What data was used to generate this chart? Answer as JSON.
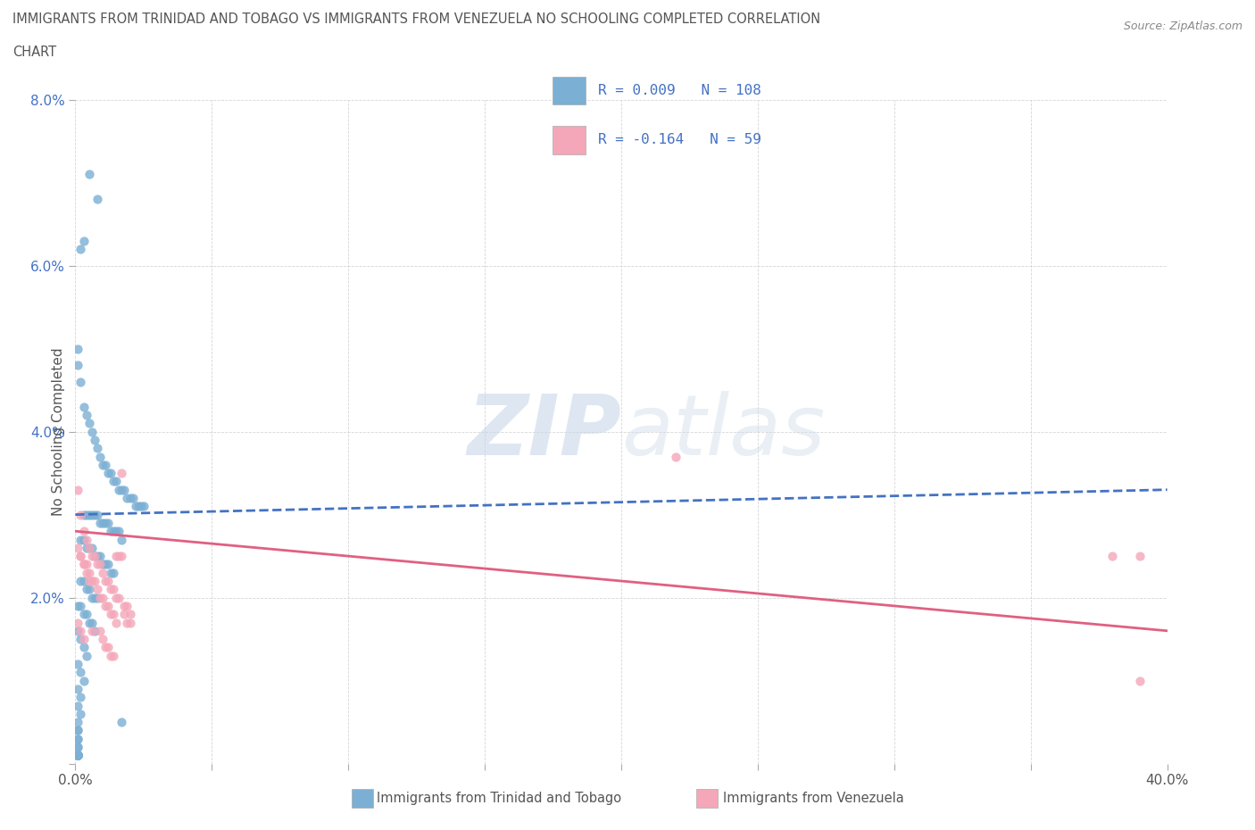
{
  "title_line1": "IMMIGRANTS FROM TRINIDAD AND TOBAGO VS IMMIGRANTS FROM VENEZUELA NO SCHOOLING COMPLETED CORRELATION",
  "title_line2": "CHART",
  "source": "Source: ZipAtlas.com",
  "ylabel": "No Schooling Completed",
  "xlim": [
    0.0,
    0.4
  ],
  "ylim": [
    0.0,
    0.08
  ],
  "xticks": [
    0.0,
    0.05,
    0.1,
    0.15,
    0.2,
    0.25,
    0.3,
    0.35,
    0.4
  ],
  "yticks": [
    0.0,
    0.02,
    0.04,
    0.06,
    0.08
  ],
  "color_tt": "#7bafd4",
  "color_tt_line": "#4472c4",
  "color_vz": "#f4a7b9",
  "color_vz_line": "#e06080",
  "color_legend_text": "#4472c4",
  "R_tt": 0.009,
  "N_tt": 108,
  "R_vz": -0.164,
  "N_vz": 59,
  "watermark_zip": "ZIP",
  "watermark_atlas": "atlas",
  "legend_tt": "Immigrants from Trinidad and Tobago",
  "legend_vz": "Immigrants from Venezuela",
  "tt_trend_x": [
    0.0,
    0.4
  ],
  "tt_trend_y": [
    0.03,
    0.033
  ],
  "vz_trend_x": [
    0.0,
    0.4
  ],
  "vz_trend_y": [
    0.028,
    0.016
  ],
  "scatter_tt_x": [
    0.005,
    0.008,
    0.003,
    0.002,
    0.001,
    0.001,
    0.002,
    0.003,
    0.004,
    0.005,
    0.006,
    0.007,
    0.008,
    0.009,
    0.01,
    0.011,
    0.012,
    0.013,
    0.014,
    0.015,
    0.016,
    0.017,
    0.018,
    0.019,
    0.02,
    0.021,
    0.022,
    0.023,
    0.024,
    0.025,
    0.003,
    0.004,
    0.005,
    0.006,
    0.007,
    0.008,
    0.009,
    0.01,
    0.011,
    0.012,
    0.013,
    0.014,
    0.015,
    0.016,
    0.017,
    0.002,
    0.003,
    0.004,
    0.005,
    0.006,
    0.007,
    0.008,
    0.009,
    0.01,
    0.011,
    0.012,
    0.013,
    0.014,
    0.002,
    0.003,
    0.004,
    0.005,
    0.006,
    0.007,
    0.008,
    0.001,
    0.002,
    0.003,
    0.004,
    0.005,
    0.006,
    0.007,
    0.001,
    0.002,
    0.003,
    0.004,
    0.001,
    0.002,
    0.003,
    0.001,
    0.002,
    0.001,
    0.002,
    0.001,
    0.017,
    0.001,
    0.001,
    0.001,
    0.001,
    0.001,
    0.001,
    0.001,
    0.001,
    0.001,
    0.001,
    0.001,
    0.001,
    0.001,
    0.001,
    0.001,
    0.001,
    0.001,
    0.001,
    0.001,
    0.001,
    0.001,
    0.001,
    0.001
  ],
  "scatter_tt_y": [
    0.071,
    0.068,
    0.063,
    0.062,
    0.05,
    0.048,
    0.046,
    0.043,
    0.042,
    0.041,
    0.04,
    0.039,
    0.038,
    0.037,
    0.036,
    0.036,
    0.035,
    0.035,
    0.034,
    0.034,
    0.033,
    0.033,
    0.033,
    0.032,
    0.032,
    0.032,
    0.031,
    0.031,
    0.031,
    0.031,
    0.03,
    0.03,
    0.03,
    0.03,
    0.03,
    0.03,
    0.029,
    0.029,
    0.029,
    0.029,
    0.028,
    0.028,
    0.028,
    0.028,
    0.027,
    0.027,
    0.027,
    0.026,
    0.026,
    0.026,
    0.025,
    0.025,
    0.025,
    0.024,
    0.024,
    0.024,
    0.023,
    0.023,
    0.022,
    0.022,
    0.021,
    0.021,
    0.02,
    0.02,
    0.02,
    0.019,
    0.019,
    0.018,
    0.018,
    0.017,
    0.017,
    0.016,
    0.016,
    0.015,
    0.014,
    0.013,
    0.012,
    0.011,
    0.01,
    0.009,
    0.008,
    0.007,
    0.006,
    0.005,
    0.005,
    0.004,
    0.004,
    0.003,
    0.003,
    0.002,
    0.002,
    0.001,
    0.001,
    0.001,
    0.001,
    0.001,
    0.001,
    0.001,
    0.001,
    0.001,
    0.001,
    0.001,
    0.001,
    0.001,
    0.001,
    0.001,
    0.001,
    0.001
  ],
  "scatter_vz_x": [
    0.001,
    0.002,
    0.003,
    0.004,
    0.005,
    0.006,
    0.007,
    0.008,
    0.009,
    0.01,
    0.011,
    0.012,
    0.013,
    0.014,
    0.015,
    0.016,
    0.017,
    0.018,
    0.019,
    0.02,
    0.002,
    0.003,
    0.004,
    0.005,
    0.006,
    0.007,
    0.008,
    0.009,
    0.01,
    0.011,
    0.012,
    0.013,
    0.014,
    0.015,
    0.001,
    0.002,
    0.003,
    0.004,
    0.005,
    0.006,
    0.22,
    0.39,
    0.001,
    0.002,
    0.003,
    0.009,
    0.01,
    0.011,
    0.012,
    0.013,
    0.014,
    0.015,
    0.016,
    0.017,
    0.018,
    0.019,
    0.02,
    0.38,
    0.39
  ],
  "scatter_vz_y": [
    0.033,
    0.03,
    0.028,
    0.027,
    0.026,
    0.025,
    0.025,
    0.024,
    0.024,
    0.023,
    0.022,
    0.022,
    0.021,
    0.021,
    0.02,
    0.02,
    0.035,
    0.019,
    0.019,
    0.018,
    0.025,
    0.024,
    0.024,
    0.023,
    0.022,
    0.022,
    0.021,
    0.02,
    0.02,
    0.019,
    0.019,
    0.018,
    0.018,
    0.017,
    0.026,
    0.025,
    0.024,
    0.023,
    0.022,
    0.016,
    0.037,
    0.025,
    0.017,
    0.016,
    0.015,
    0.016,
    0.015,
    0.014,
    0.014,
    0.013,
    0.013,
    0.025,
    0.025,
    0.025,
    0.018,
    0.017,
    0.017,
    0.025,
    0.01
  ]
}
